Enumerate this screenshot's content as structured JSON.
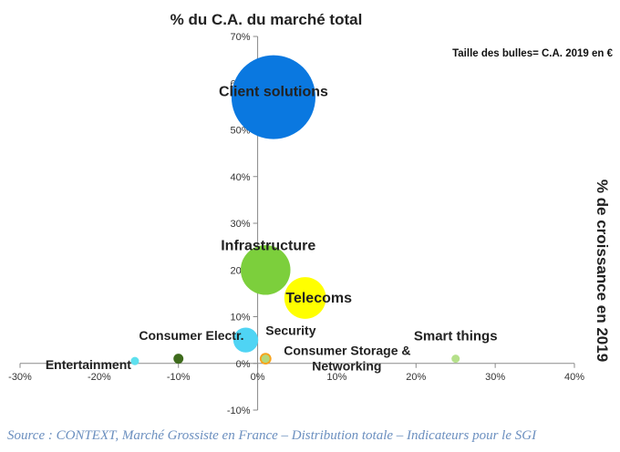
{
  "chart_data": {
    "type": "bubble",
    "title": "% du C.A. du marché total",
    "ylabel_right": "% de croissance en 2019",
    "size_note": "Taille des bulles= C.A. 2019 en €",
    "xlim": [
      -30,
      40
    ],
    "ylim": [
      -10,
      70
    ],
    "x_ticks": [
      "-30%",
      "-20%",
      "-10%",
      "0%",
      "10%",
      "20%",
      "30%",
      "40%"
    ],
    "y_ticks": [
      "-10%",
      "0%",
      "10%",
      "20%",
      "30%",
      "40%",
      "50%",
      "60%",
      "70%"
    ],
    "grid": false,
    "series": [
      {
        "label": "Client solutions",
        "x": 2,
        "y": 57,
        "size": 57,
        "color": "#0a78e0"
      },
      {
        "label": "Infrastructure",
        "x": 1,
        "y": 20,
        "size": 20,
        "color": "#7ccf3c"
      },
      {
        "label": "Telecoms",
        "x": 6,
        "y": 14,
        "size": 14,
        "color": "#ffff00"
      },
      {
        "label": "Consumer Electr.",
        "x": -1.5,
        "y": 5,
        "size": 5,
        "color": "#4fd4f4"
      },
      {
        "label": "Security",
        "x": 1,
        "y": 1,
        "size": 1.1,
        "color": "#f7a31b"
      },
      {
        "label": "Consumer Storage & Networking",
        "x": 1,
        "y": 1,
        "size": 0.5,
        "color": "#b5d87a"
      },
      {
        "label": "Smart things",
        "x": 25,
        "y": 1,
        "size": 0.5,
        "color": "#b5e08a"
      },
      {
        "label": "Entertainment",
        "x": -15.5,
        "y": 0.5,
        "size": 0.55,
        "color": "#5ee0ee"
      },
      {
        "label": "",
        "x": -10,
        "y": 1,
        "size": 0.8,
        "color": "#3e6b1c"
      }
    ]
  },
  "source": "Source : CONTEXT, Marché Grossiste en France – Distribution totale – Indicateurs pour le SGI"
}
